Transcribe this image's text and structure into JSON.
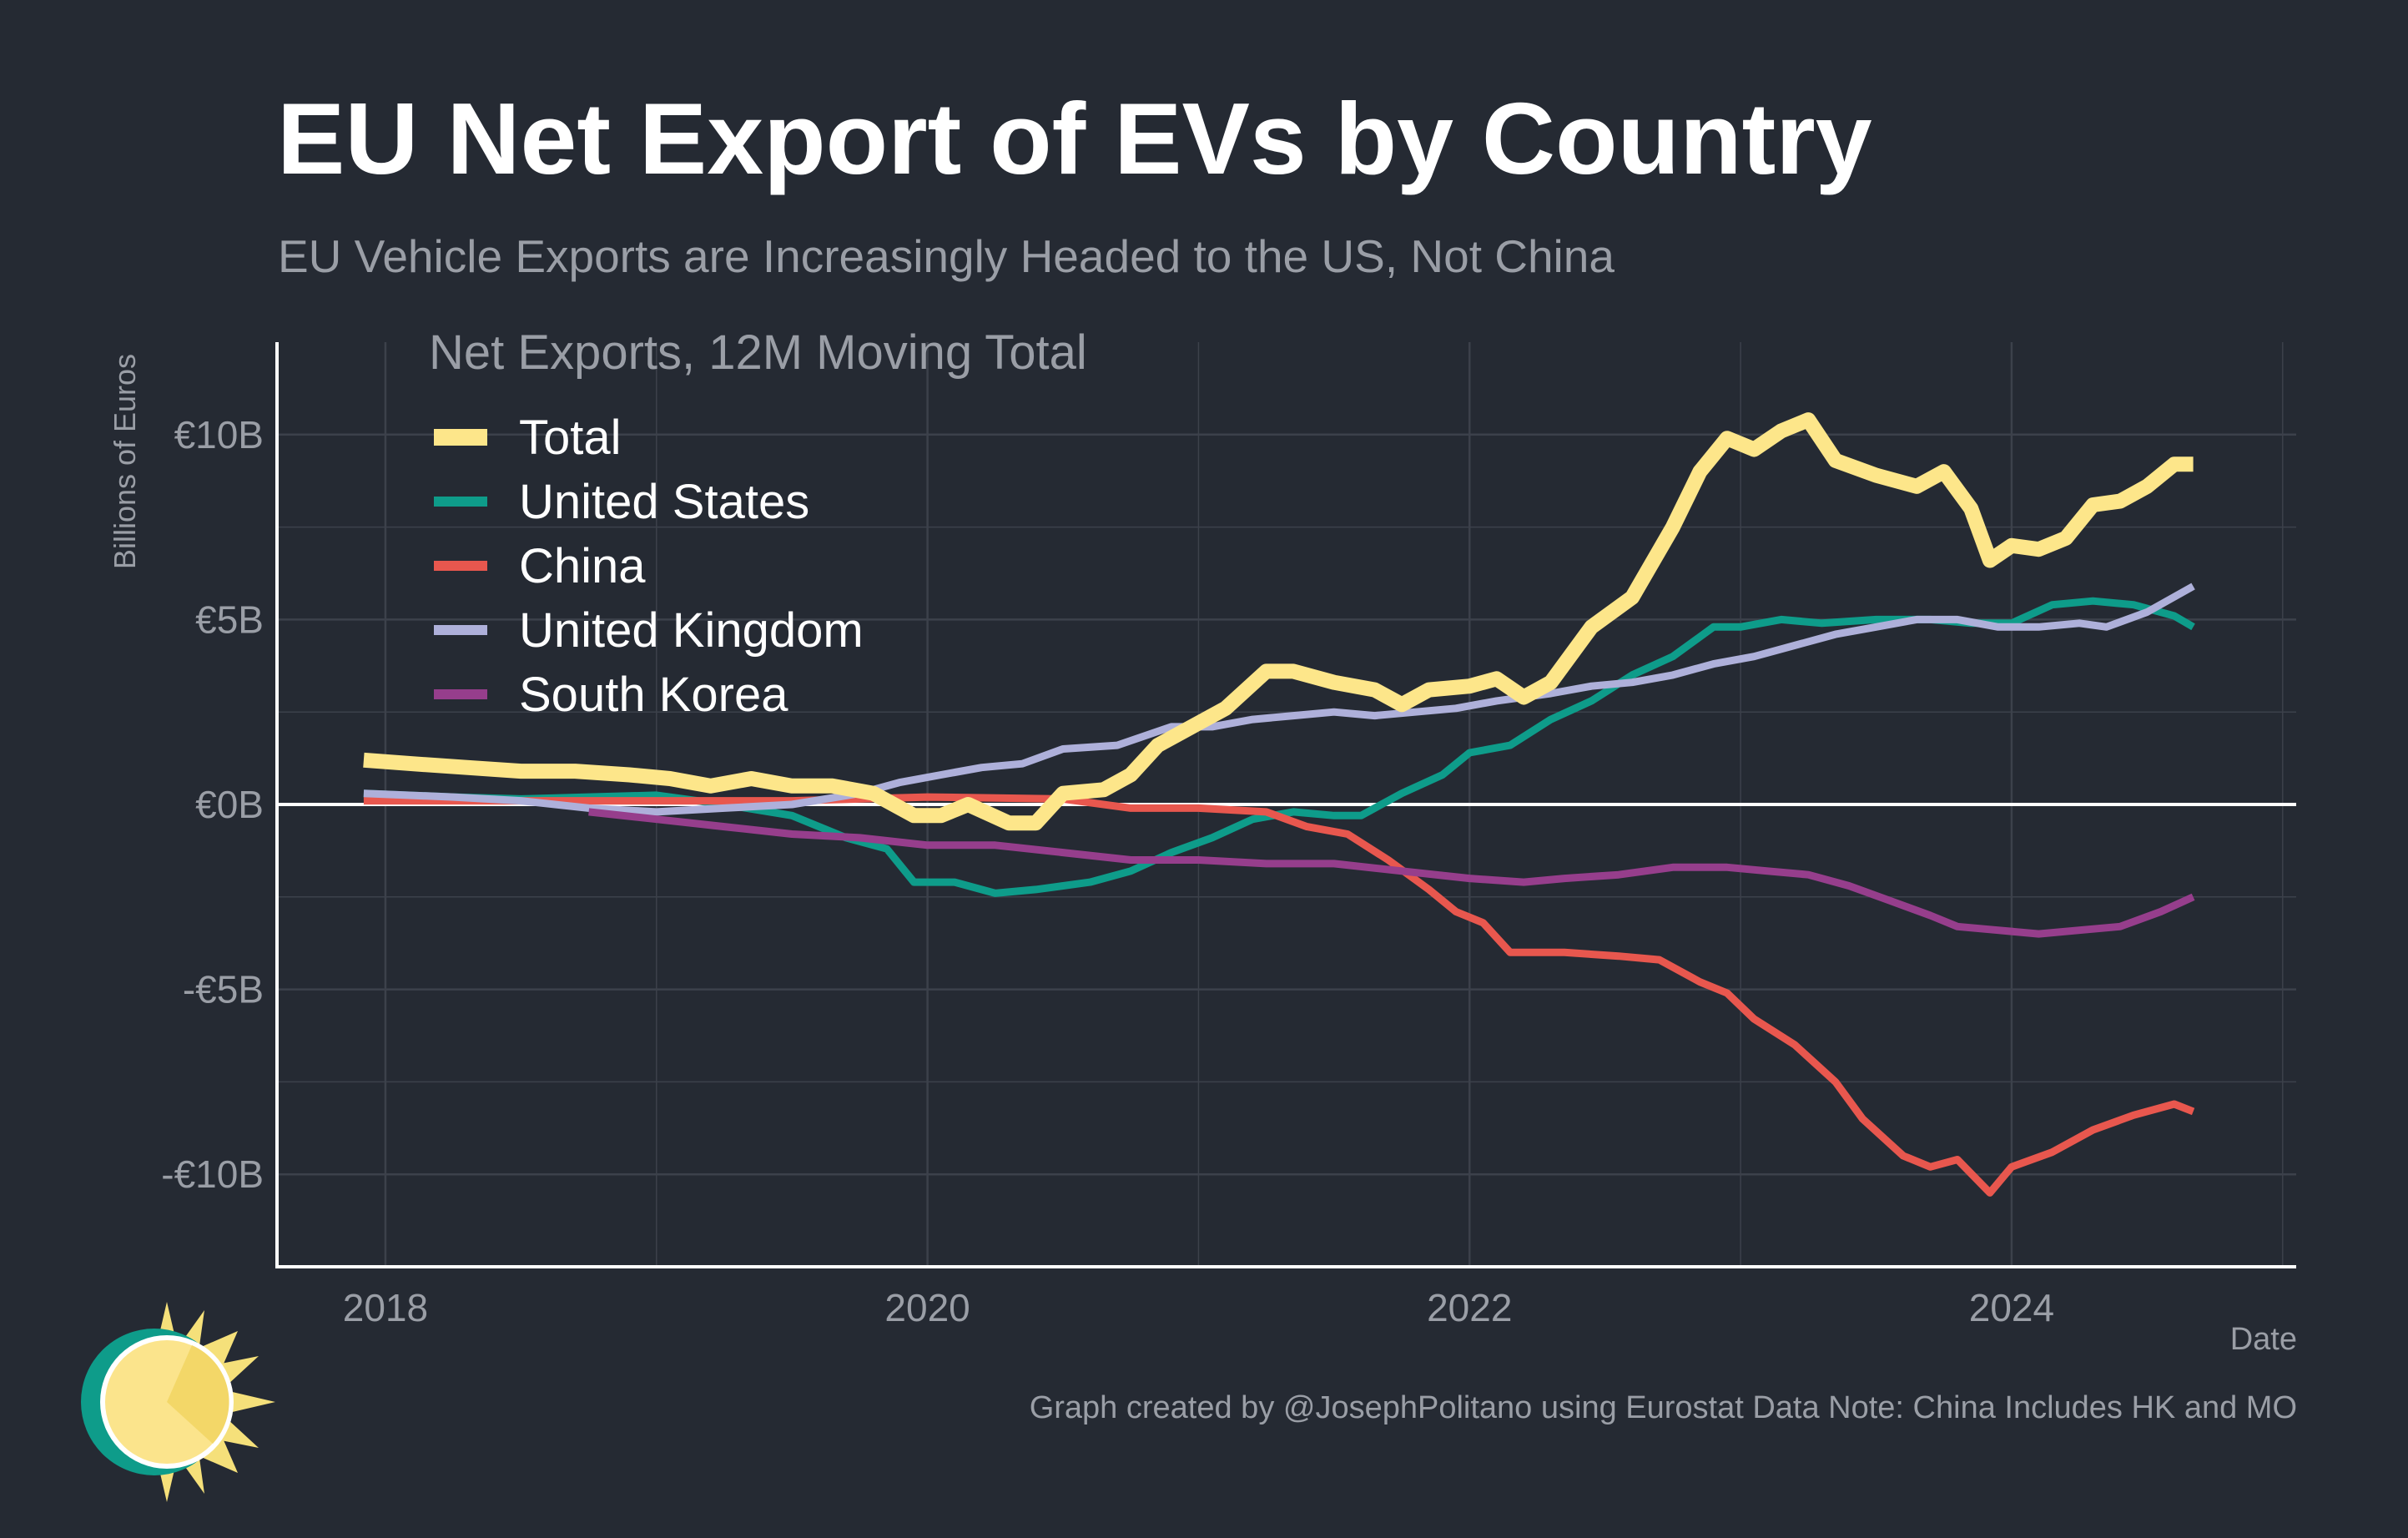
{
  "title": "EU Net Export of EVs by Country",
  "subtitle": "EU Vehicle Exports are Increasingly Headed to the US, Not China",
  "footer": {
    "xlabel": "Date",
    "note": "Graph created by @JosephPolitano using Eurostat Data  Note: China Includes HK and MO"
  },
  "logo_icon": "sun-logo-icon",
  "colors": {
    "background": "#252a33",
    "grid": "#3c414b",
    "axis": "#ffffff",
    "muted_text": "#9a9ea6"
  },
  "chart_data": {
    "type": "line",
    "title": "",
    "legend_title": "Net Exports, 12M Moving Total",
    "legend_position": "top-left",
    "xlabel": "Date",
    "ylabel": "Billions of Euros",
    "xlim": [
      2017.6,
      2025.05
    ],
    "ylim": [
      -12.5,
      12.5
    ],
    "x_ticks": [
      2018,
      2020,
      2022,
      2024
    ],
    "x_tick_labels": [
      "2018",
      "2020",
      "2022",
      "2024"
    ],
    "y_ticks": [
      10,
      5,
      0,
      -5,
      -10
    ],
    "y_tick_labels": [
      "€10B",
      "€5B",
      "€0B",
      "-€5B",
      "-€10B"
    ],
    "grid": true,
    "zero_line": true,
    "series": [
      {
        "name": "United States",
        "color": "#0e9c8a",
        "width": 9,
        "points": [
          [
            2017.92,
            0.3
          ],
          [
            2018.25,
            0.2
          ],
          [
            2018.5,
            0.15
          ],
          [
            2018.75,
            0.2
          ],
          [
            2019.0,
            0.25
          ],
          [
            2019.25,
            0.0
          ],
          [
            2019.5,
            -0.3
          ],
          [
            2019.7,
            -0.9
          ],
          [
            2019.85,
            -1.2
          ],
          [
            2019.95,
            -2.1
          ],
          [
            2020.1,
            -2.1
          ],
          [
            2020.25,
            -2.4
          ],
          [
            2020.4,
            -2.3
          ],
          [
            2020.6,
            -2.1
          ],
          [
            2020.75,
            -1.8
          ],
          [
            2020.9,
            -1.3
          ],
          [
            2021.05,
            -0.9
          ],
          [
            2021.2,
            -0.4
          ],
          [
            2021.35,
            -0.2
          ],
          [
            2021.5,
            -0.3
          ],
          [
            2021.6,
            -0.3
          ],
          [
            2021.75,
            0.3
          ],
          [
            2021.9,
            0.8
          ],
          [
            2022.0,
            1.4
          ],
          [
            2022.15,
            1.6
          ],
          [
            2022.3,
            2.3
          ],
          [
            2022.45,
            2.8
          ],
          [
            2022.6,
            3.5
          ],
          [
            2022.75,
            4.0
          ],
          [
            2022.9,
            4.8
          ],
          [
            2023.0,
            4.8
          ],
          [
            2023.15,
            5.0
          ],
          [
            2023.3,
            4.9
          ],
          [
            2023.5,
            5.0
          ],
          [
            2023.7,
            5.0
          ],
          [
            2023.85,
            4.9
          ],
          [
            2024.0,
            4.9
          ],
          [
            2024.15,
            5.4
          ],
          [
            2024.3,
            5.5
          ],
          [
            2024.45,
            5.4
          ],
          [
            2024.6,
            5.1
          ],
          [
            2024.67,
            4.8
          ]
        ]
      },
      {
        "name": "China",
        "color": "#e8574e",
        "width": 9,
        "points": [
          [
            2017.92,
            0.1
          ],
          [
            2018.5,
            0.1
          ],
          [
            2019.0,
            0.1
          ],
          [
            2019.5,
            0.1
          ],
          [
            2020.0,
            0.2
          ],
          [
            2020.5,
            0.15
          ],
          [
            2020.75,
            -0.1
          ],
          [
            2021.0,
            -0.1
          ],
          [
            2021.25,
            -0.2
          ],
          [
            2021.4,
            -0.6
          ],
          [
            2021.55,
            -0.8
          ],
          [
            2021.7,
            -1.5
          ],
          [
            2021.85,
            -2.3
          ],
          [
            2021.95,
            -2.9
          ],
          [
            2022.05,
            -3.2
          ],
          [
            2022.15,
            -4.0
          ],
          [
            2022.35,
            -4.0
          ],
          [
            2022.55,
            -4.1
          ],
          [
            2022.7,
            -4.2
          ],
          [
            2022.85,
            -4.8
          ],
          [
            2022.95,
            -5.1
          ],
          [
            2023.05,
            -5.8
          ],
          [
            2023.2,
            -6.5
          ],
          [
            2023.35,
            -7.5
          ],
          [
            2023.45,
            -8.5
          ],
          [
            2023.6,
            -9.5
          ],
          [
            2023.7,
            -9.8
          ],
          [
            2023.8,
            -9.6
          ],
          [
            2023.92,
            -10.5
          ],
          [
            2024.0,
            -9.8
          ],
          [
            2024.15,
            -9.4
          ],
          [
            2024.3,
            -8.8
          ],
          [
            2024.45,
            -8.4
          ],
          [
            2024.6,
            -8.1
          ],
          [
            2024.67,
            -8.3
          ]
        ]
      },
      {
        "name": "United Kingdom",
        "color": "#aeb0da",
        "width": 9,
        "points": [
          [
            2017.92,
            0.3
          ],
          [
            2018.25,
            0.2
          ],
          [
            2018.5,
            0.1
          ],
          [
            2018.75,
            -0.1
          ],
          [
            2019.0,
            -0.2
          ],
          [
            2019.25,
            -0.1
          ],
          [
            2019.5,
            0.0
          ],
          [
            2019.75,
            0.3
          ],
          [
            2019.9,
            0.6
          ],
          [
            2020.05,
            0.8
          ],
          [
            2020.2,
            1.0
          ],
          [
            2020.35,
            1.1
          ],
          [
            2020.5,
            1.5
          ],
          [
            2020.7,
            1.6
          ],
          [
            2020.9,
            2.1
          ],
          [
            2021.05,
            2.1
          ],
          [
            2021.2,
            2.3
          ],
          [
            2021.35,
            2.4
          ],
          [
            2021.5,
            2.5
          ],
          [
            2021.65,
            2.4
          ],
          [
            2021.8,
            2.5
          ],
          [
            2021.95,
            2.6
          ],
          [
            2022.1,
            2.8
          ],
          [
            2022.3,
            3.0
          ],
          [
            2022.45,
            3.2
          ],
          [
            2022.6,
            3.3
          ],
          [
            2022.75,
            3.5
          ],
          [
            2022.9,
            3.8
          ],
          [
            2023.05,
            4.0
          ],
          [
            2023.2,
            4.3
          ],
          [
            2023.35,
            4.6
          ],
          [
            2023.5,
            4.8
          ],
          [
            2023.65,
            5.0
          ],
          [
            2023.8,
            5.0
          ],
          [
            2023.95,
            4.8
          ],
          [
            2024.1,
            4.8
          ],
          [
            2024.25,
            4.9
          ],
          [
            2024.35,
            4.8
          ],
          [
            2024.5,
            5.2
          ],
          [
            2024.67,
            5.9
          ]
        ]
      },
      {
        "name": "South Korea",
        "color": "#963e8c",
        "width": 9,
        "points": [
          [
            2018.75,
            -0.2
          ],
          [
            2019.0,
            -0.4
          ],
          [
            2019.25,
            -0.6
          ],
          [
            2019.5,
            -0.8
          ],
          [
            2019.75,
            -0.9
          ],
          [
            2020.0,
            -1.1
          ],
          [
            2020.25,
            -1.1
          ],
          [
            2020.5,
            -1.3
          ],
          [
            2020.75,
            -1.5
          ],
          [
            2021.0,
            -1.5
          ],
          [
            2021.25,
            -1.6
          ],
          [
            2021.5,
            -1.6
          ],
          [
            2021.75,
            -1.8
          ],
          [
            2022.0,
            -2.0
          ],
          [
            2022.2,
            -2.1
          ],
          [
            2022.35,
            -2.0
          ],
          [
            2022.55,
            -1.9
          ],
          [
            2022.75,
            -1.7
          ],
          [
            2022.95,
            -1.7
          ],
          [
            2023.1,
            -1.8
          ],
          [
            2023.25,
            -1.9
          ],
          [
            2023.4,
            -2.2
          ],
          [
            2023.55,
            -2.6
          ],
          [
            2023.7,
            -3.0
          ],
          [
            2023.8,
            -3.3
          ],
          [
            2023.95,
            -3.4
          ],
          [
            2024.1,
            -3.5
          ],
          [
            2024.25,
            -3.4
          ],
          [
            2024.4,
            -3.3
          ],
          [
            2024.55,
            -2.9
          ],
          [
            2024.67,
            -2.5
          ]
        ]
      },
      {
        "name": "Total",
        "color": "#fde68a",
        "width": 18,
        "points": [
          [
            2017.92,
            1.2
          ],
          [
            2018.1,
            1.1
          ],
          [
            2018.3,
            1.0
          ],
          [
            2018.5,
            0.9
          ],
          [
            2018.7,
            0.9
          ],
          [
            2018.9,
            0.8
          ],
          [
            2019.05,
            0.7
          ],
          [
            2019.2,
            0.5
          ],
          [
            2019.35,
            0.7
          ],
          [
            2019.5,
            0.5
          ],
          [
            2019.65,
            0.5
          ],
          [
            2019.8,
            0.3
          ],
          [
            2019.95,
            -0.3
          ],
          [
            2020.05,
            -0.3
          ],
          [
            2020.15,
            0.0
          ],
          [
            2020.3,
            -0.5
          ],
          [
            2020.4,
            -0.5
          ],
          [
            2020.5,
            0.3
          ],
          [
            2020.65,
            0.4
          ],
          [
            2020.75,
            0.8
          ],
          [
            2020.85,
            1.6
          ],
          [
            2021.0,
            2.2
          ],
          [
            2021.1,
            2.6
          ],
          [
            2021.25,
            3.6
          ],
          [
            2021.35,
            3.6
          ],
          [
            2021.5,
            3.3
          ],
          [
            2021.65,
            3.1
          ],
          [
            2021.75,
            2.7
          ],
          [
            2021.85,
            3.1
          ],
          [
            2022.0,
            3.2
          ],
          [
            2022.1,
            3.4
          ],
          [
            2022.2,
            2.9
          ],
          [
            2022.3,
            3.3
          ],
          [
            2022.45,
            4.8
          ],
          [
            2022.6,
            5.6
          ],
          [
            2022.75,
            7.5
          ],
          [
            2022.85,
            9.0
          ],
          [
            2022.95,
            9.9
          ],
          [
            2023.05,
            9.6
          ],
          [
            2023.15,
            10.1
          ],
          [
            2023.25,
            10.4
          ],
          [
            2023.35,
            9.3
          ],
          [
            2023.5,
            8.9
          ],
          [
            2023.65,
            8.6
          ],
          [
            2023.75,
            9.0
          ],
          [
            2023.85,
            8.0
          ],
          [
            2023.92,
            6.6
          ],
          [
            2024.0,
            7.0
          ],
          [
            2024.1,
            6.9
          ],
          [
            2024.2,
            7.2
          ],
          [
            2024.3,
            8.1
          ],
          [
            2024.4,
            8.2
          ],
          [
            2024.5,
            8.6
          ],
          [
            2024.6,
            9.2
          ],
          [
            2024.67,
            9.2
          ]
        ]
      }
    ],
    "legend_order": [
      "Total",
      "United States",
      "China",
      "United Kingdom",
      "South Korea"
    ]
  }
}
